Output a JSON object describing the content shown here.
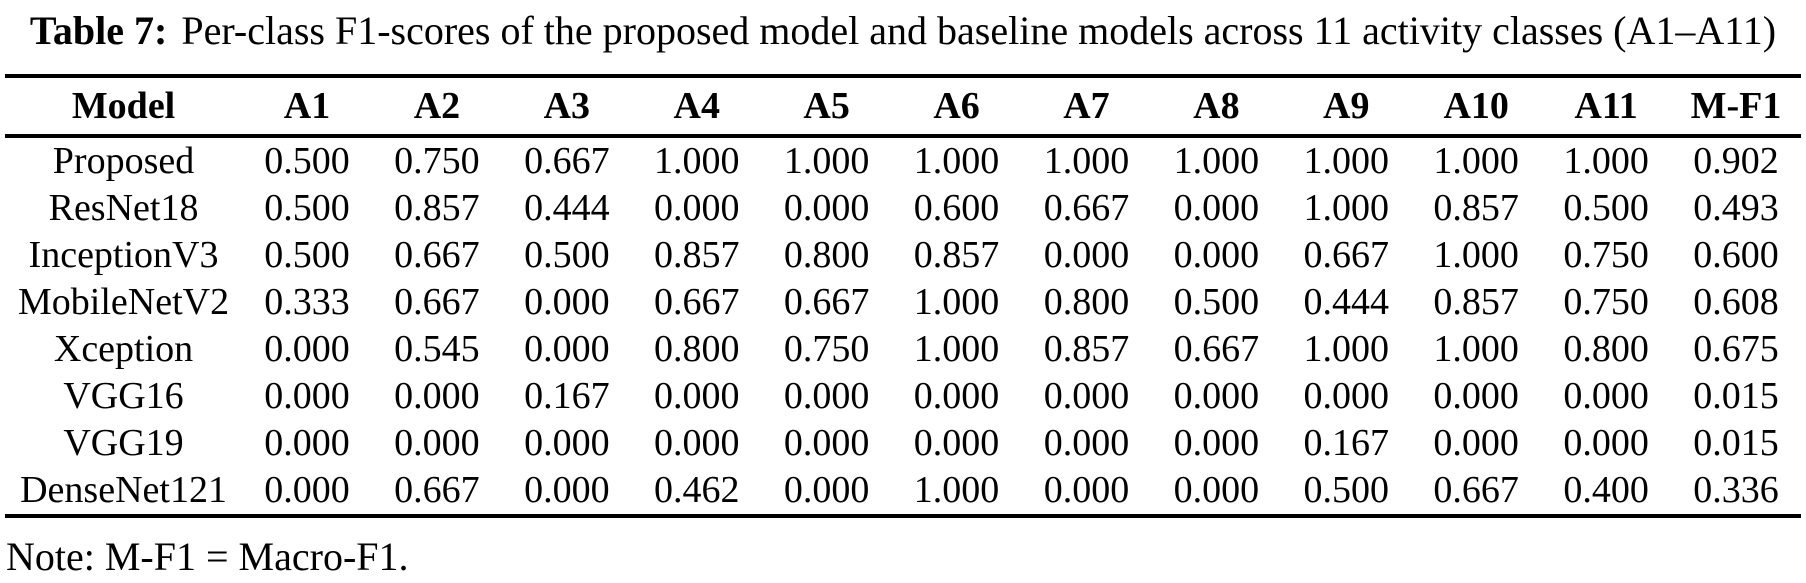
{
  "caption": {
    "label": "Table 7:",
    "text": "Per-class F1-scores of the proposed model and baseline models across 11 activity classes (A1–A11)"
  },
  "table": {
    "columns": [
      "Model",
      "A1",
      "A2",
      "A3",
      "A4",
      "A5",
      "A6",
      "A7",
      "A8",
      "A9",
      "A10",
      "A11",
      "M-F1"
    ],
    "rows": [
      {
        "model": "Proposed",
        "values": [
          "0.500",
          "0.750",
          "0.667",
          "1.000",
          "1.000",
          "1.000",
          "1.000",
          "1.000",
          "1.000",
          "1.000",
          "1.000",
          "0.902"
        ]
      },
      {
        "model": "ResNet18",
        "values": [
          "0.500",
          "0.857",
          "0.444",
          "0.000",
          "0.000",
          "0.600",
          "0.667",
          "0.000",
          "1.000",
          "0.857",
          "0.500",
          "0.493"
        ]
      },
      {
        "model": "InceptionV3",
        "values": [
          "0.500",
          "0.667",
          "0.500",
          "0.857",
          "0.800",
          "0.857",
          "0.000",
          "0.000",
          "0.667",
          "1.000",
          "0.750",
          "0.600"
        ]
      },
      {
        "model": "MobileNetV2",
        "values": [
          "0.333",
          "0.667",
          "0.000",
          "0.667",
          "0.667",
          "1.000",
          "0.800",
          "0.500",
          "0.444",
          "0.857",
          "0.750",
          "0.608"
        ]
      },
      {
        "model": "Xception",
        "values": [
          "0.000",
          "0.545",
          "0.000",
          "0.800",
          "0.750",
          "1.000",
          "0.857",
          "0.667",
          "1.000",
          "1.000",
          "0.800",
          "0.675"
        ]
      },
      {
        "model": "VGG16",
        "values": [
          "0.000",
          "0.000",
          "0.167",
          "0.000",
          "0.000",
          "0.000",
          "0.000",
          "0.000",
          "0.000",
          "0.000",
          "0.000",
          "0.015"
        ]
      },
      {
        "model": "VGG19",
        "values": [
          "0.000",
          "0.000",
          "0.000",
          "0.000",
          "0.000",
          "0.000",
          "0.000",
          "0.000",
          "0.167",
          "0.000",
          "0.000",
          "0.015"
        ]
      },
      {
        "model": "DenseNet121",
        "values": [
          "0.000",
          "0.667",
          "0.000",
          "0.462",
          "0.000",
          "1.000",
          "0.000",
          "0.000",
          "0.500",
          "0.667",
          "0.400",
          "0.336"
        ]
      }
    ]
  },
  "note": "Note: M-F1 = Macro-F1.",
  "colors": {
    "text": "#000000",
    "background": "#ffffff",
    "rule": "#000000"
  }
}
